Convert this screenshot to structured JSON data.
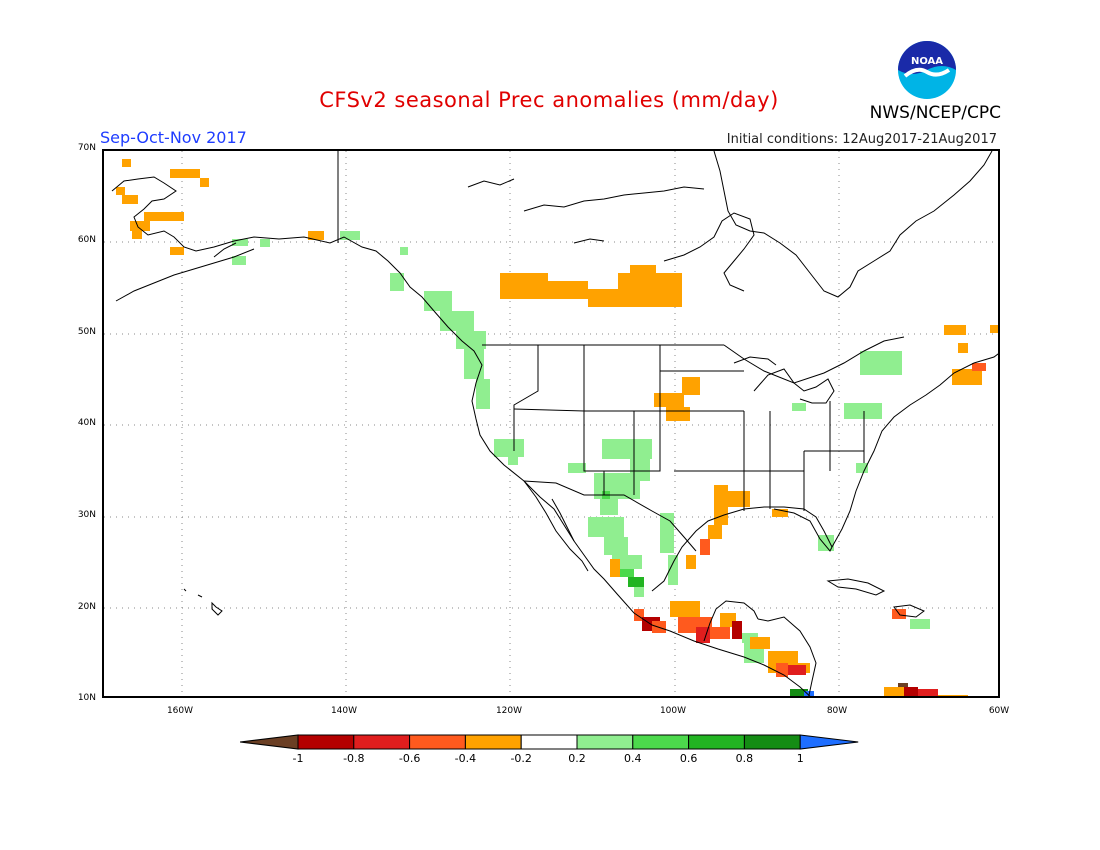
{
  "title": "CFSv2 seasonal Prec anomalies (mm/day)",
  "season": "Sep-Oct-Nov 2017",
  "initial_conditions": "Initial conditions: 12Aug2017-21Aug2017",
  "agency": "NWS/NCEP/CPC",
  "logo_text": "NOAA",
  "lat_labels": [
    "70N",
    "60N",
    "50N",
    "40N",
    "30N",
    "20N",
    "10N"
  ],
  "lon_labels": [
    "160W",
    "140W",
    "120W",
    "100W",
    "80W",
    "60W"
  ],
  "colorbar": {
    "labels": [
      "-1",
      "-0.8",
      "-0.6",
      "-0.4",
      "-0.2",
      "0.2",
      "0.4",
      "0.6",
      "0.8",
      "1"
    ],
    "colors": [
      "#6b3f24",
      "#b40000",
      "#e01e1e",
      "#ff5a1e",
      "#ffa200",
      "#ffffff",
      "#90ee90",
      "#4cd94c",
      "#22b422",
      "#148c14",
      "#1e6eff"
    ]
  }
}
